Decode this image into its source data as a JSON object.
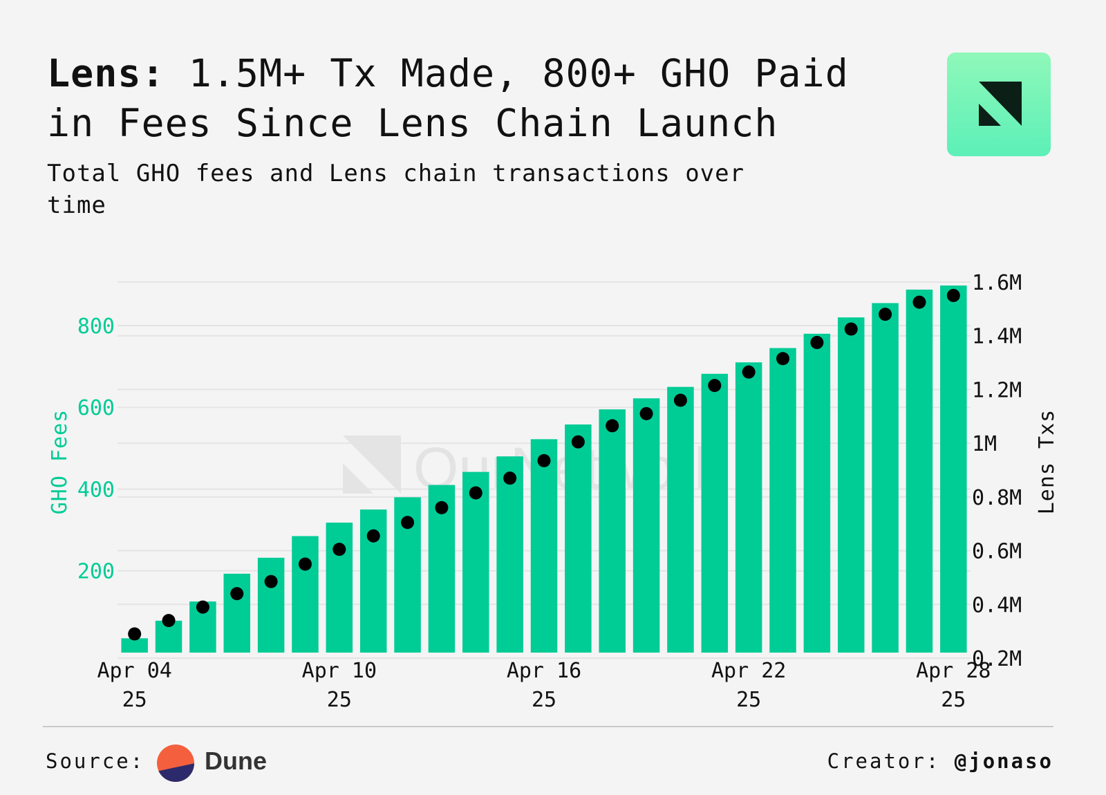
{
  "header": {
    "title_bold": "Lens:",
    "title_rest": "1.5M+ Tx Made, 800+ GHO Paid in Fees Since Lens Chain Launch",
    "subtitle": "Total GHO fees and Lens chain transactions over time"
  },
  "brand": {
    "logo_icon": "ournetwork-logo-icon",
    "watermark_text": "OurNetwork"
  },
  "colors": {
    "bar": "#00cc96",
    "left_axis": "#00cc96",
    "dot": "#000000",
    "grid": "#e4e4e4"
  },
  "chart_data": {
    "type": "bar",
    "x": [
      "Apr 04 25",
      "Apr 05 25",
      "Apr 06 25",
      "Apr 07 25",
      "Apr 08 25",
      "Apr 09 25",
      "Apr 10 25",
      "Apr 11 25",
      "Apr 12 25",
      "Apr 13 25",
      "Apr 14 25",
      "Apr 15 25",
      "Apr 16 25",
      "Apr 17 25",
      "Apr 18 25",
      "Apr 19 25",
      "Apr 20 25",
      "Apr 21 25",
      "Apr 22 25",
      "Apr 23 25",
      "Apr 24 25",
      "Apr 25 25",
      "Apr 26 25",
      "Apr 27 25",
      "Apr 28 25"
    ],
    "x_tick_labels": [
      {
        "index": 0,
        "line1": "Apr 04",
        "line2": "25"
      },
      {
        "index": 6,
        "line1": "Apr 10",
        "line2": "25"
      },
      {
        "index": 12,
        "line1": "Apr 16",
        "line2": "25"
      },
      {
        "index": 18,
        "line1": "Apr 22",
        "line2": "25"
      },
      {
        "index": 24,
        "line1": "Apr 28",
        "line2": "25"
      }
    ],
    "series": [
      {
        "name": "GHO Fees",
        "type": "bar",
        "axis": "left",
        "values": [
          35,
          78,
          125,
          193,
          232,
          285,
          318,
          350,
          380,
          410,
          442,
          480,
          522,
          558,
          595,
          622,
          650,
          682,
          710,
          745,
          780,
          820,
          855,
          888,
          898
        ]
      },
      {
        "name": "Lens Txs",
        "type": "scatter",
        "axis": "right",
        "values": [
          290000,
          340000,
          390000,
          440000,
          485000,
          550000,
          605000,
          655000,
          705000,
          760000,
          815000,
          870000,
          935000,
          1005000,
          1065000,
          1110000,
          1160000,
          1215000,
          1265000,
          1315000,
          1375000,
          1425000,
          1480000,
          1525000,
          1550000
        ]
      }
    ],
    "y_left": {
      "label": "GHO Fees",
      "range": [
        0,
        920
      ],
      "ticks": [
        {
          "v": 200,
          "t": "200"
        },
        {
          "v": 400,
          "t": "400"
        },
        {
          "v": 600,
          "t": "600"
        },
        {
          "v": 800,
          "t": "800"
        }
      ]
    },
    "y_right": {
      "label": "Lens Txs",
      "range": [
        200000,
        1600000
      ],
      "ticks": [
        {
          "v": 200000,
          "t": "0.2M"
        },
        {
          "v": 400000,
          "t": "0.4M"
        },
        {
          "v": 600000,
          "t": "0.6M"
        },
        {
          "v": 800000,
          "t": "0.8M"
        },
        {
          "v": 1000000,
          "t": "1M"
        },
        {
          "v": 1200000,
          "t": "1.2M"
        },
        {
          "v": 1400000,
          "t": "1.4M"
        },
        {
          "v": 1600000,
          "t": "1.6M"
        }
      ]
    },
    "grid": true,
    "legend": "none"
  },
  "footer": {
    "source_label": "Source:",
    "source_name": "Dune",
    "creator_label": "Creator:",
    "creator_handle": "@jonaso"
  }
}
